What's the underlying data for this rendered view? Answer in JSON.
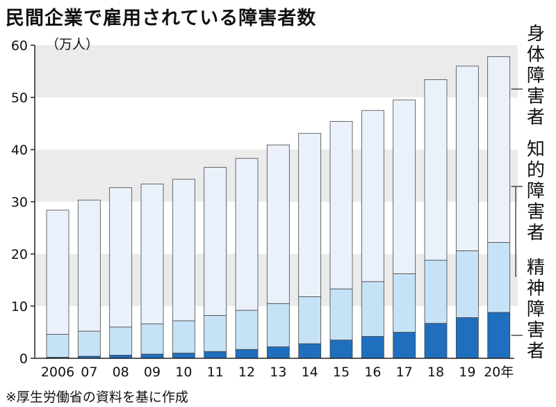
{
  "title": "民間企業で雇用されている障害者数",
  "source": "※厚生労働省の資料を基に作成",
  "chart_data": {
    "type": "bar",
    "stacked": true,
    "unit_label": "（万人）",
    "categories": [
      "2006",
      "07",
      "08",
      "09",
      "10",
      "11",
      "12",
      "13",
      "14",
      "15",
      "16",
      "17",
      "18",
      "19",
      "20年"
    ],
    "series": [
      {
        "name": "精神障害者",
        "color": "#1f6fbe",
        "values": [
          0.2,
          0.4,
          0.6,
          0.8,
          1.0,
          1.3,
          1.7,
          2.2,
          2.8,
          3.5,
          4.2,
          5.0,
          6.7,
          7.8,
          8.8
        ]
      },
      {
        "name": "知的障害者",
        "color": "#c6e2f6",
        "values": [
          4.4,
          4.8,
          5.4,
          5.8,
          6.2,
          6.9,
          7.5,
          8.3,
          9.0,
          9.8,
          10.5,
          11.2,
          12.1,
          12.8,
          13.4
        ]
      },
      {
        "name": "身体障害者",
        "color": "#eaf1fb",
        "values": [
          23.8,
          25.1,
          26.7,
          26.8,
          27.1,
          28.4,
          29.1,
          30.4,
          31.3,
          32.1,
          32.8,
          33.3,
          34.6,
          35.4,
          35.6
        ]
      }
    ],
    "yticks": [
      0,
      10,
      20,
      30,
      40,
      50,
      60
    ],
    "ylim": [
      0,
      60
    ],
    "grid": "alternating horizontal bands",
    "band_color": "#ebebeb",
    "legend": "right, vertical labels"
  }
}
